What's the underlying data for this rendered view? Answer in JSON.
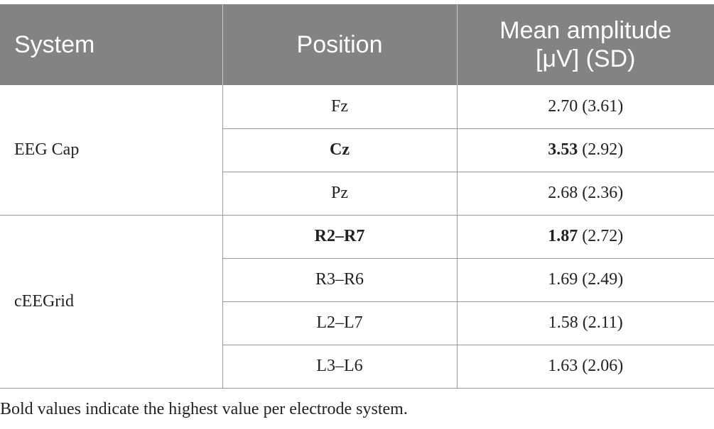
{
  "table": {
    "headers": {
      "system": "System",
      "position": "Position",
      "amplitude_line1": "Mean amplitude",
      "amplitude_line2": "[μV] (SD)"
    },
    "groups": [
      {
        "system": "EEG Cap",
        "rows": [
          {
            "position": "Fz",
            "mean": "2.70",
            "sd": " (3.61)",
            "bold": false
          },
          {
            "position": "Cz",
            "mean": "3.53",
            "sd": " (2.92)",
            "bold": true
          },
          {
            "position": "Pz",
            "mean": "2.68",
            "sd": " (2.36)",
            "bold": false
          }
        ]
      },
      {
        "system": "cEEGrid",
        "rows": [
          {
            "position": "R2–R7",
            "mean": "1.87",
            "sd": " (2.72)",
            "bold": true
          },
          {
            "position": "R3–R6",
            "mean": "1.69",
            "sd": " (2.49)",
            "bold": false
          },
          {
            "position": "L2–L7",
            "mean": "1.58",
            "sd": " (2.11)",
            "bold": false
          },
          {
            "position": "L3–L6",
            "mean": "1.63",
            "sd": " (2.06)",
            "bold": false
          }
        ]
      }
    ]
  },
  "footnote": "Bold values indicate the highest value per electrode system."
}
